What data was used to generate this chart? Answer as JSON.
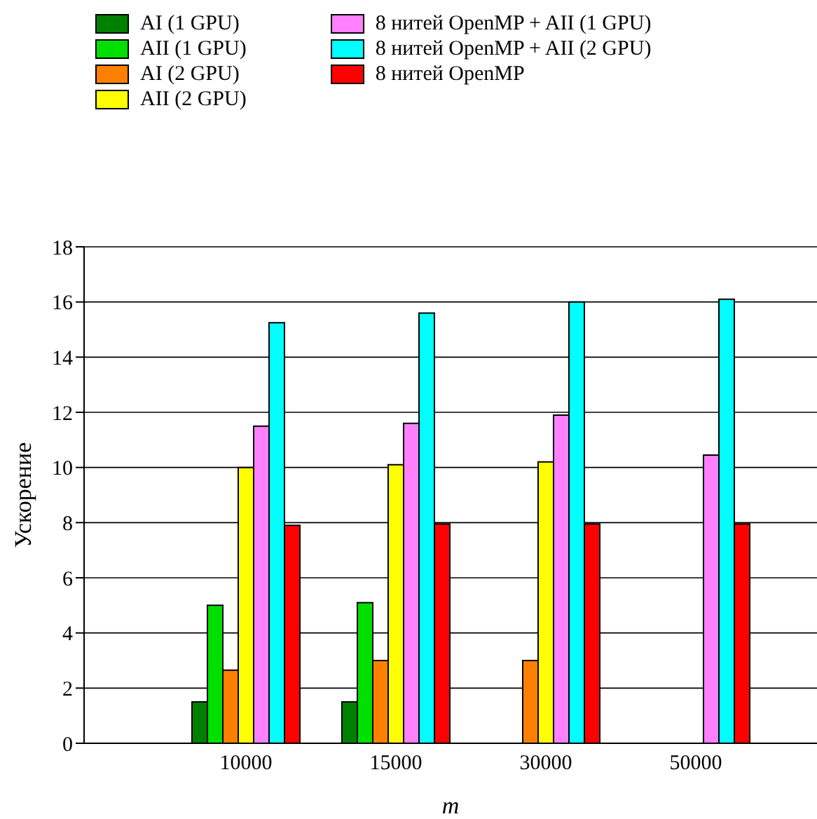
{
  "chart_data": {
    "type": "bar",
    "xlabel": "m",
    "ylabel": "Ускорение",
    "categories": [
      "10000",
      "15000",
      "30000",
      "50000"
    ],
    "ylim": [
      0,
      18
    ],
    "yticks": [
      0,
      2,
      4,
      6,
      8,
      10,
      12,
      14,
      16,
      18
    ],
    "grid": "y",
    "legend": "top left",
    "series": [
      {
        "name": "AI (1 GPU)",
        "color": "#008000",
        "values": [
          1.5,
          1.5,
          null,
          null
        ]
      },
      {
        "name": "AII (1 GPU)",
        "color": "#00e000",
        "values": [
          5.0,
          5.1,
          null,
          null
        ]
      },
      {
        "name": "AI (2 GPU)",
        "color": "#ff8000",
        "values": [
          2.65,
          3.0,
          3.0,
          null
        ]
      },
      {
        "name": "AII (2 GPU)",
        "color": "#ffff00",
        "values": [
          10.0,
          10.1,
          10.2,
          null
        ]
      },
      {
        "name": "8 нитей OpenMP + AII (1 GPU)",
        "color": "#ff80ff",
        "values": [
          11.5,
          11.6,
          11.9,
          10.45
        ]
      },
      {
        "name": "8 нитей OpenMP + AII (2 GPU)",
        "color": "#00ffff",
        "values": [
          15.25,
          15.6,
          16.0,
          16.1
        ]
      },
      {
        "name": "8 нитей OpenMP",
        "color": "#ff0000",
        "values": [
          7.9,
          7.95,
          7.95,
          7.95
        ]
      }
    ]
  }
}
